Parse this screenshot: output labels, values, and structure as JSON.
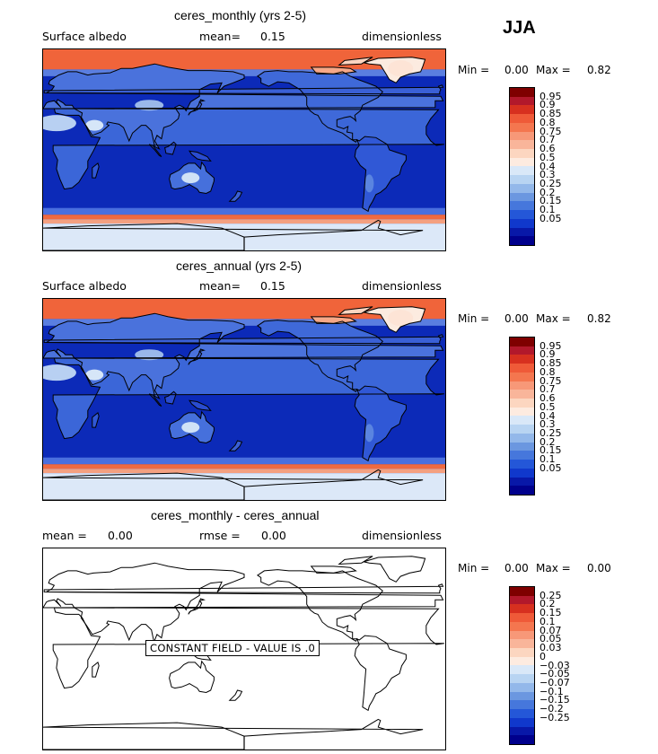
{
  "season": "JJA",
  "colors": {
    "pos_scale": [
      "#7f0000",
      "#b2182b",
      "#d7301f",
      "#ef5a38",
      "#f4764f",
      "#f79878",
      "#f9b59a",
      "#fcd6c0",
      "#fdebe0",
      "#d9e8f8",
      "#b8d4f2",
      "#93b8ea",
      "#6b97e0",
      "#4677dc",
      "#2457d8",
      "#1038cc",
      "#0818a8",
      "#00008c"
    ],
    "diff_scale": [
      "#7f0000",
      "#b2182b",
      "#d7301f",
      "#ef5a38",
      "#f4764f",
      "#f79878",
      "#f9b59a",
      "#fcd6c0",
      "#fdebe0",
      "#d9e8f8",
      "#b8d4f2",
      "#93b8ea",
      "#6b97e0",
      "#4677dc",
      "#2457d8",
      "#1038cc",
      "#0818a8",
      "#00008c"
    ]
  },
  "chart_data": [
    {
      "type": "heatmap",
      "title": "ceres_monthly (yrs 2-5)",
      "variable": "Surface albedo",
      "mean_label": "mean=",
      "mean_value": "0.15",
      "units": "dimensionless",
      "min_label": "Min =",
      "min_value": "0.00",
      "max_label": "Max =",
      "max_value": "0.82",
      "colorbar_levels": [
        "0.95",
        "0.9",
        "0.85",
        "0.8",
        "0.75",
        "0.7",
        "0.6",
        "0.5",
        "0.4",
        "0.3",
        "0.25",
        "0.2",
        "0.15",
        "0.1",
        "0.05"
      ]
    },
    {
      "type": "heatmap",
      "title": "ceres_annual (yrs 2-5)",
      "variable": "Surface albedo",
      "mean_label": "mean=",
      "mean_value": "0.15",
      "units": "dimensionless",
      "min_label": "Min =",
      "min_value": "0.00",
      "max_label": "Max =",
      "max_value": "0.82",
      "colorbar_levels": [
        "0.95",
        "0.9",
        "0.85",
        "0.8",
        "0.75",
        "0.7",
        "0.6",
        "0.5",
        "0.4",
        "0.3",
        "0.25",
        "0.2",
        "0.15",
        "0.1",
        "0.05"
      ]
    },
    {
      "type": "heatmap",
      "title": "ceres_monthly - ceres_annual",
      "mean_label": "mean =",
      "mean_value": "0.00",
      "rmse_label": "rmse =",
      "rmse_value": "0.00",
      "units": "dimensionless",
      "min_label": "Min =",
      "min_value": "0.00",
      "max_label": "Max =",
      "max_value": "0.00",
      "note": "CONSTANT FIELD - VALUE IS .0",
      "colorbar_levels": [
        "0.25",
        "0.2",
        "0.15",
        "0.1",
        "0.07",
        "0.05",
        "0.03",
        "0",
        "−0.03",
        "−0.05",
        "−0.07",
        "−0.1",
        "−0.15",
        "−0.2",
        "−0.25"
      ]
    }
  ]
}
